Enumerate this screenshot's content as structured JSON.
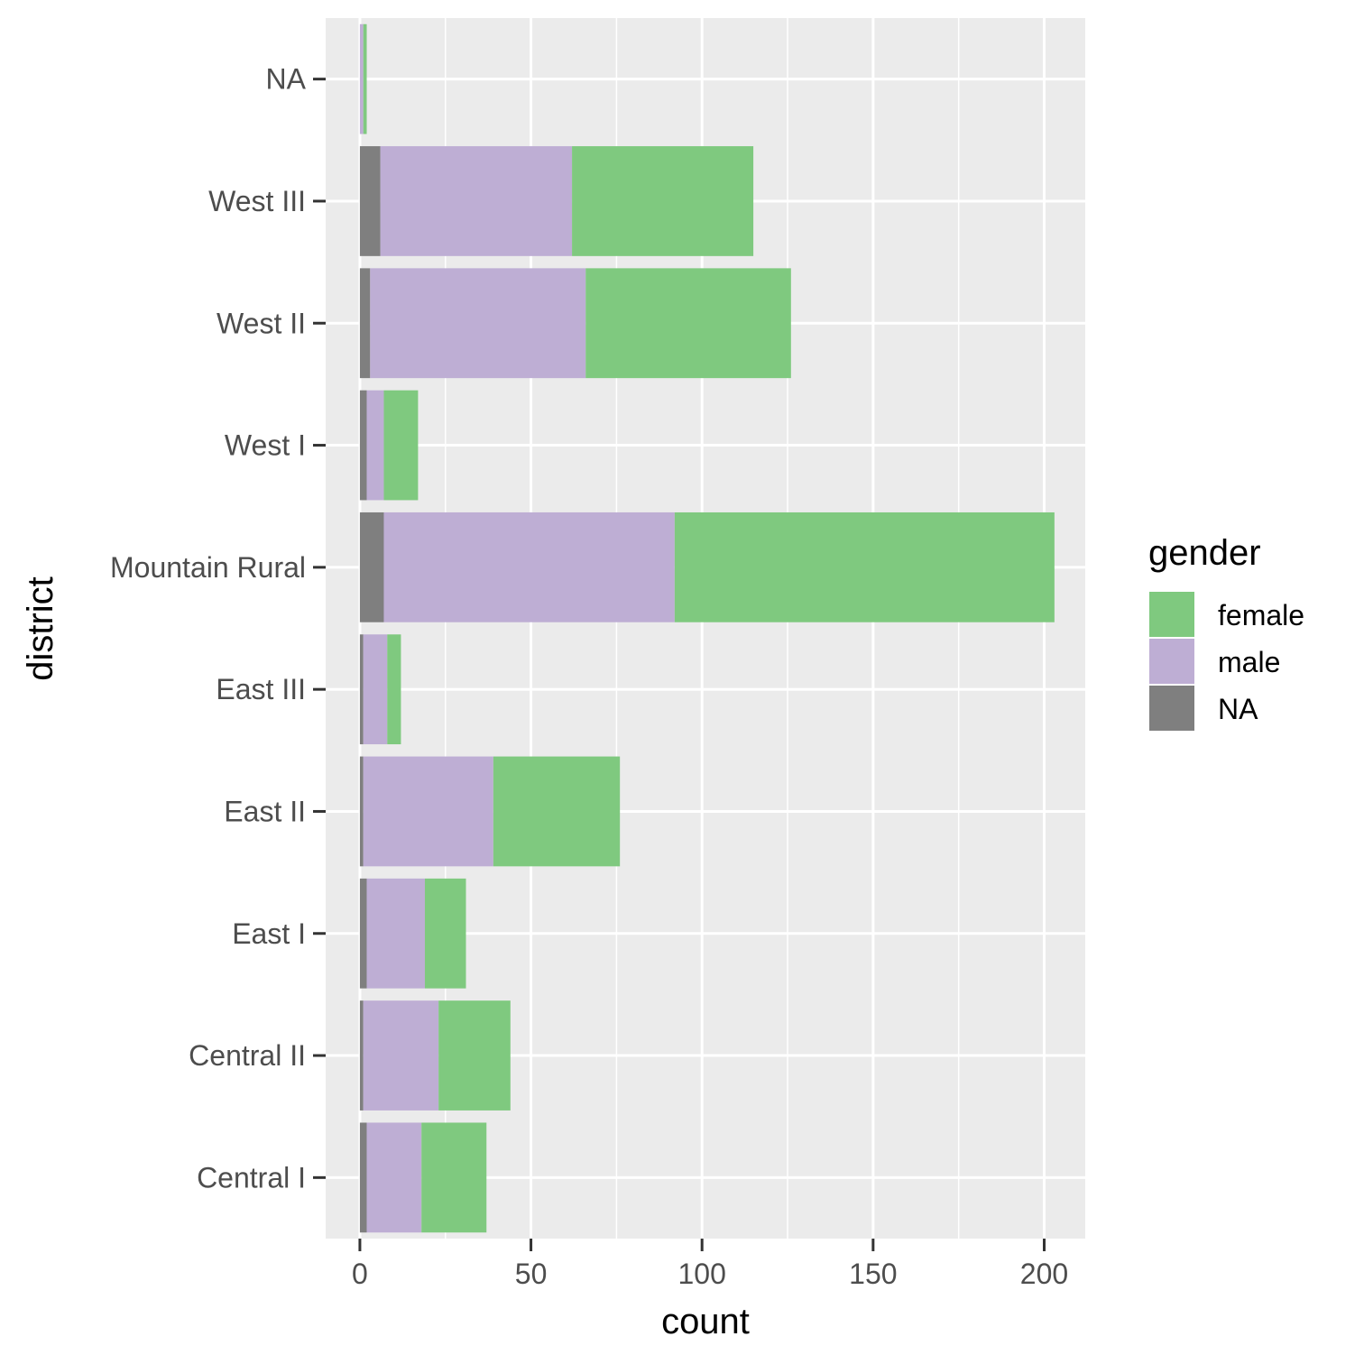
{
  "chart_data": {
    "type": "bar",
    "orientation": "horizontal",
    "stacked": true,
    "xlabel": "count",
    "ylabel": "district",
    "xlim": [
      -10,
      212
    ],
    "x_ticks": [
      0,
      50,
      100,
      150,
      200
    ],
    "x_tick_labels": [
      "0",
      "50",
      "100",
      "150",
      "200"
    ],
    "grid": true,
    "legend_position": "right",
    "legend_title": "gender",
    "categories": [
      "Central I",
      "Central II",
      "East I",
      "East II",
      "East III",
      "Mountain Rural",
      "West I",
      "West II",
      "West III",
      "NA"
    ],
    "series": [
      {
        "name": "NA",
        "color": "#7f7f7f",
        "values": [
          2,
          1,
          2,
          1,
          1,
          7,
          2,
          3,
          6,
          0
        ]
      },
      {
        "name": "male",
        "color": "#beaed4",
        "values": [
          16,
          22,
          17,
          38,
          7,
          85,
          5,
          63,
          56,
          1
        ]
      },
      {
        "name": "female",
        "color": "#7fc97f",
        "values": [
          19,
          21,
          12,
          37,
          4,
          111,
          10,
          60,
          53,
          1
        ]
      }
    ],
    "legend_items": [
      {
        "label": "female",
        "color": "#7fc97f"
      },
      {
        "label": "male",
        "color": "#beaed4"
      },
      {
        "label": "NA",
        "color": "#7f7f7f"
      }
    ],
    "panel_background": "#ebebeb",
    "gridline_color": "#ffffff"
  }
}
